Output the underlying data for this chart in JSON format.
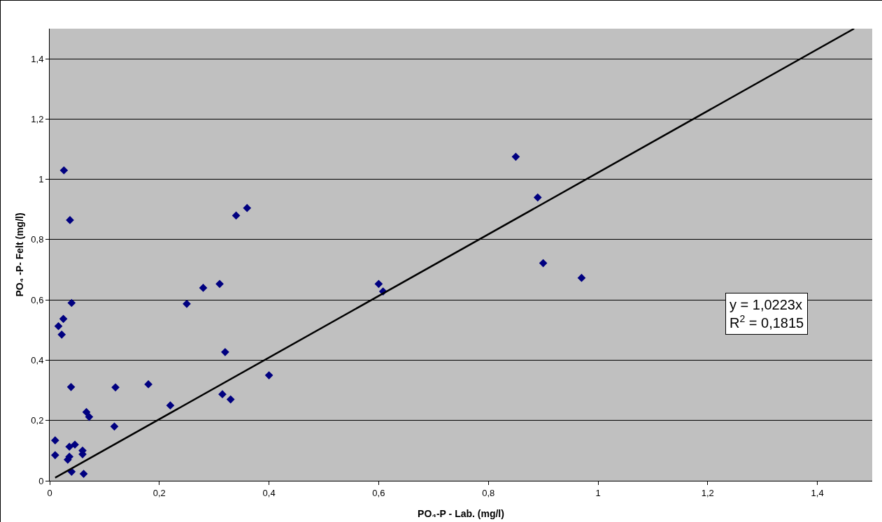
{
  "chart_data": {
    "type": "scatter",
    "xlabel": "PO₄-P - Lab. (mg/l)",
    "ylabel": "PO₄ -P- Felt (mg/l)",
    "annotations": [
      "y = 1,0223x",
      "R$^{2}$ = 0,1815"
    ],
    "xlim": [
      0,
      1.5
    ],
    "ylim": [
      0,
      1.5
    ],
    "xticks": [
      0,
      {
        "value": 0.2,
        "label": "0,2"
      },
      {
        "value": 0.4,
        "label": "0,4"
      },
      {
        "value": 0.6,
        "label": "0,6"
      },
      {
        "value": 0.8,
        "label": "0,8"
      },
      1,
      {
        "value": 1.2,
        "label": "1,2"
      },
      {
        "value": 1.4,
        "label": "1,4"
      }
    ],
    "yticks": [
      0,
      {
        "value": 0.2,
        "label": "0,2"
      },
      {
        "value": 0.4,
        "label": "0,4"
      },
      {
        "value": 0.6,
        "label": "0,6"
      },
      {
        "value": 0.8,
        "label": "0,8"
      },
      1,
      {
        "value": 1.2,
        "label": "1,2"
      },
      {
        "value": 1.4,
        "label": "1,4"
      }
    ],
    "grid": "y",
    "series": [
      {
        "marker": "diamond",
        "color": "#000080",
        "x": [
          0.026,
          0.037,
          0.04,
          0.025,
          0.016,
          0.022,
          0.039,
          0.01,
          0.01,
          0.036,
          0.046,
          0.033,
          0.036,
          0.04,
          0.06,
          0.06,
          0.062,
          0.067,
          0.072,
          0.12,
          0.118,
          0.18,
          0.22,
          0.25,
          0.28,
          0.31,
          0.315,
          0.32,
          0.33,
          0.34,
          0.36,
          0.4,
          0.6,
          0.608,
          0.85,
          0.89,
          0.9,
          0.97
        ],
        "values": [
          1.03,
          0.865,
          0.59,
          0.537,
          0.513,
          0.485,
          0.311,
          0.134,
          0.085,
          0.113,
          0.12,
          0.07,
          0.08,
          0.03,
          0.1,
          0.088,
          0.023,
          0.228,
          0.212,
          0.31,
          0.18,
          0.32,
          0.25,
          0.587,
          0.64,
          0.653,
          0.287,
          0.427,
          0.27,
          0.88,
          0.905,
          0.35,
          0.653,
          0.628,
          1.075,
          0.94,
          0.722,
          0.673
        ]
      },
      {
        "type": "line",
        "color": "#000000",
        "x": [
          0.01,
          1.467
        ],
        "values": [
          0.01,
          1.5
        ]
      }
    ]
  }
}
